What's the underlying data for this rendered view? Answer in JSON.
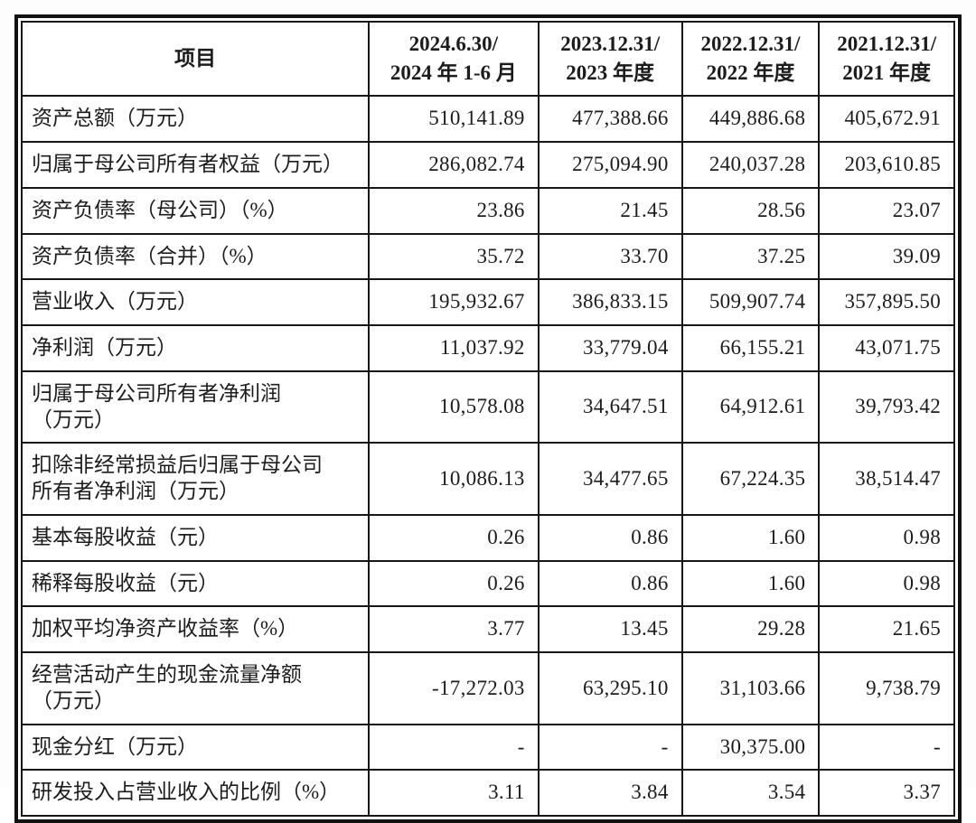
{
  "table": {
    "header": {
      "item_label": "项目",
      "columns": [
        "2024.6.30/\n2024 年 1-6 月",
        "2023.12.31/\n2023 年度",
        "2022.12.31/\n2022 年度",
        "2021.12.31/\n2021 年度"
      ]
    },
    "rows": [
      {
        "label": "资产总额（万元）",
        "values": [
          "510,141.89",
          "477,388.66",
          "449,886.68",
          "405,672.91"
        ]
      },
      {
        "label": "归属于母公司所有者权益（万元）",
        "values": [
          "286,082.74",
          "275,094.90",
          "240,037.28",
          "203,610.85"
        ]
      },
      {
        "label": "资产负债率（母公司）（%）",
        "values": [
          "23.86",
          "21.45",
          "28.56",
          "23.07"
        ]
      },
      {
        "label": "资产负债率（合并）（%）",
        "values": [
          "35.72",
          "33.70",
          "37.25",
          "39.09"
        ]
      },
      {
        "label": "营业收入（万元）",
        "values": [
          "195,932.67",
          "386,833.15",
          "509,907.74",
          "357,895.50"
        ]
      },
      {
        "label": "净利润（万元）",
        "values": [
          "11,037.92",
          "33,779.04",
          "66,155.21",
          "43,071.75"
        ]
      },
      {
        "label": "归属于母公司所有者净利润\n（万元）",
        "values": [
          "10,578.08",
          "34,647.51",
          "64,912.61",
          "39,793.42"
        ]
      },
      {
        "label": "扣除非经常损益后归属于母公司\n所有者净利润（万元）",
        "values": [
          "10,086.13",
          "34,477.65",
          "67,224.35",
          "38,514.47"
        ]
      },
      {
        "label": "基本每股收益（元）",
        "values": [
          "0.26",
          "0.86",
          "1.60",
          "0.98"
        ]
      },
      {
        "label": "稀释每股收益（元）",
        "values": [
          "0.26",
          "0.86",
          "1.60",
          "0.98"
        ]
      },
      {
        "label": "加权平均净资产收益率（%）",
        "values": [
          "3.77",
          "13.45",
          "29.28",
          "21.65"
        ]
      },
      {
        "label": "经营活动产生的现金流量净额\n（万元）",
        "values": [
          "-17,272.03",
          "63,295.10",
          "31,103.66",
          "9,738.79"
        ]
      },
      {
        "label": "现金分红（万元）",
        "values": [
          "-",
          "-",
          "30,375.00",
          "-"
        ]
      },
      {
        "label": "研发投入占营业收入的比例（%）",
        "values": [
          "3.11",
          "3.84",
          "3.54",
          "3.37"
        ]
      }
    ],
    "colors": {
      "text": "#1c1c1c",
      "border": "#161616",
      "background": "#ffffff"
    }
  }
}
